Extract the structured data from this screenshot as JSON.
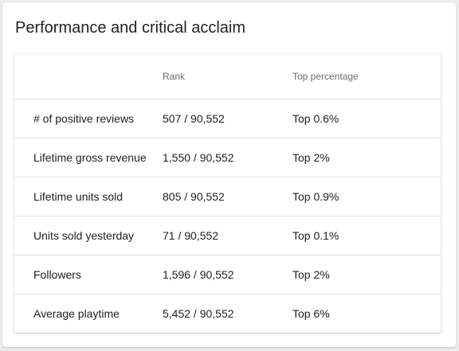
{
  "card": {
    "title": "Performance and critical acclaim"
  },
  "table": {
    "headers": [
      "",
      "Rank",
      "Top percentage"
    ],
    "rows": [
      {
        "metric": "# of positive reviews",
        "rank": "507 / 90,552",
        "top": "Top 0.6%"
      },
      {
        "metric": "Lifetime gross revenue",
        "rank": "1,550 / 90,552",
        "top": "Top 2%"
      },
      {
        "metric": "Lifetime units sold",
        "rank": "805 / 90,552",
        "top": "Top 0.9%"
      },
      {
        "metric": "Units sold yesterday",
        "rank": "71 / 90,552",
        "top": "Top 0.1%"
      },
      {
        "metric": "Followers",
        "rank": "1,596 / 90,552",
        "top": "Top 2%"
      },
      {
        "metric": "Average playtime",
        "rank": "5,452 / 90,552",
        "top": "Top 6%"
      }
    ]
  },
  "colors": {
    "page_background": "#ececec",
    "card_background": "#ffffff",
    "text_primary": "#212121",
    "text_secondary": "#6b6b6b",
    "divider": "#e2e2e2"
  }
}
